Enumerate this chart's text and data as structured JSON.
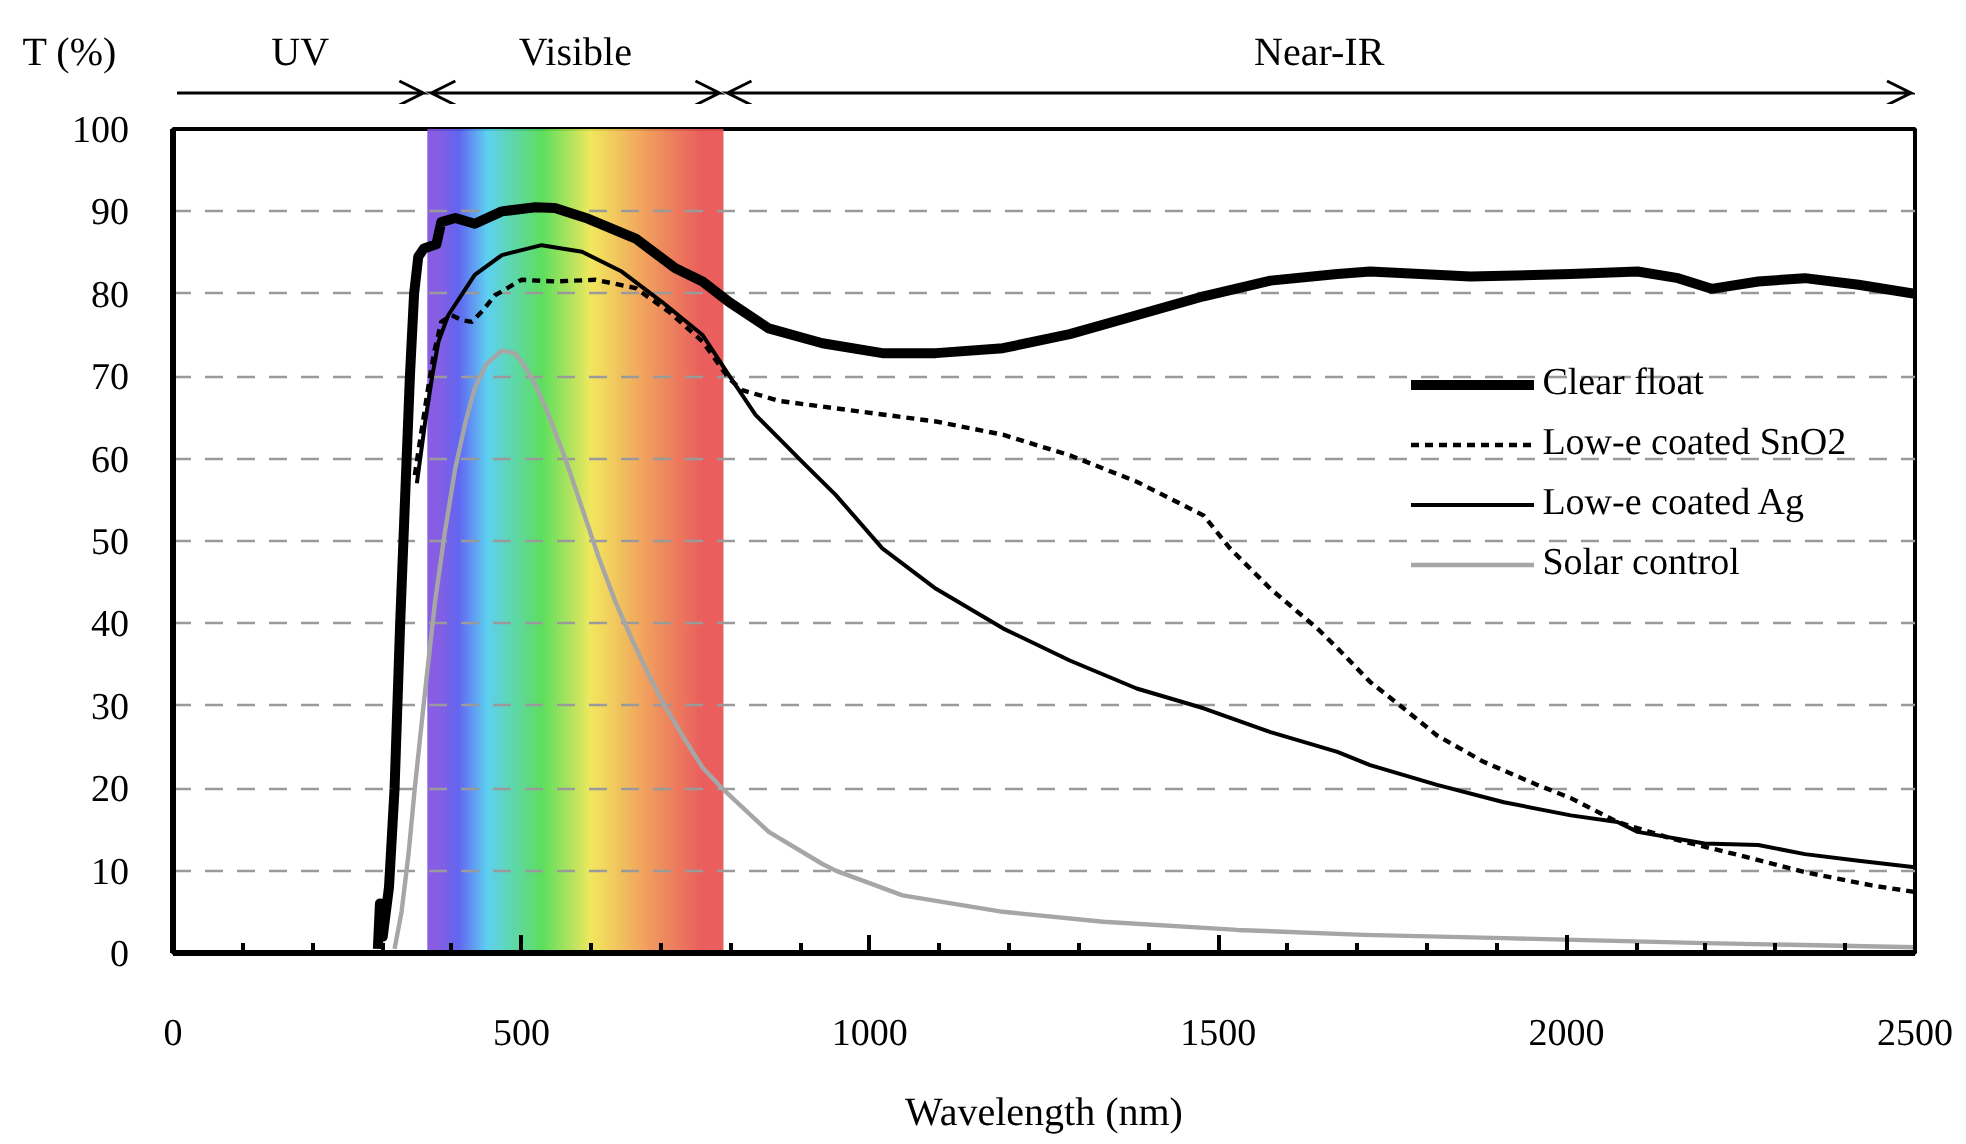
{
  "chart_data": {
    "type": "line",
    "xlabel": "Wavelength (nm)",
    "ylabel": "T (%)",
    "xlim": [
      0,
      2500
    ],
    "ylim": [
      0,
      100
    ],
    "xticks": [
      0,
      {
        "value": 100,
        "label": null
      },
      {
        "value": 200,
        "label": null
      },
      {
        "value": 300,
        "label": null
      },
      {
        "value": 400,
        "label": null
      },
      500,
      {
        "value": 600,
        "label": null
      },
      {
        "value": 700,
        "label": null
      },
      {
        "value": 800,
        "label": null
      },
      {
        "value": 900,
        "label": null
      },
      1000,
      {
        "value": 1100,
        "label": null
      },
      {
        "value": 1200,
        "label": null
      },
      {
        "value": 1300,
        "label": null
      },
      {
        "value": 1400,
        "label": null
      },
      1500,
      {
        "value": 1600,
        "label": null
      },
      {
        "value": 1700,
        "label": null
      },
      {
        "value": 1800,
        "label": null
      },
      {
        "value": 1900,
        "label": null
      },
      2000,
      {
        "value": 2100,
        "label": null
      },
      {
        "value": 2200,
        "label": null
      },
      {
        "value": 2300,
        "label": null
      },
      {
        "value": 2400,
        "label": null
      },
      2500
    ],
    "yticks": [
      0,
      10,
      20,
      30,
      40,
      50,
      60,
      70,
      80,
      90,
      100
    ],
    "grid": "y",
    "legend": "right",
    "line_style": "solid",
    "bands": [
      {
        "axis": "x",
        "from": 365,
        "to": 790,
        "label": "Visible"
      }
    ],
    "annotations": [
      "UV",
      "Near-IR"
    ],
    "series": [
      {
        "name": "Clear float",
        "color": "#000000",
        "x": [
          294,
          297,
          301,
          310,
          318,
          326,
          333,
          340,
          346,
          352,
          360,
          378,
          385,
          405,
          433,
          472,
          520,
          548,
          596,
          664,
          721,
          760,
          798,
          855,
          932,
          1018,
          1095,
          1191,
          1287,
          1383,
          1479,
          1575,
          1671,
          1718,
          1862,
          2006,
          2102,
          2160,
          2208,
          2275,
          2342,
          2419,
          2500
        ],
        "values": [
          0.5,
          6,
          2,
          8,
          20,
          40,
          55,
          70,
          80,
          84.5,
          85.5,
          86,
          88.7,
          89.2,
          88.5,
          90,
          90.5,
          90.4,
          89.1,
          86.7,
          83.1,
          81.5,
          79,
          75.8,
          74,
          72.8,
          72.8,
          73.4,
          75.1,
          77.4,
          79.7,
          81.6,
          82.4,
          82.7,
          82.1,
          82.4,
          82.7,
          81.9,
          80.6,
          81.5,
          81.9,
          81.1,
          80
        ]
      },
      {
        "name": "Low-e coated SnO2",
        "color": "#000000",
        "line_style": "dashed",
        "x": [
          347,
          356,
          366,
          375,
          385,
          400,
          415,
          429,
          445,
          462,
          500,
          548,
          606,
          664,
          712,
          760,
          798,
          817,
          870,
          951,
          1095,
          1191,
          1287,
          1383,
          1479,
          1517,
          1575,
          1642,
          1671,
          1718,
          1766,
          1814,
          1881,
          1958,
          2006,
          2073,
          2150,
          2246,
          2342,
          2438,
          2500
        ],
        "values": [
          58,
          63,
          68.5,
          73,
          76.6,
          77.4,
          76.8,
          76.6,
          78,
          79.8,
          81.7,
          81.5,
          81.7,
          80.7,
          77.8,
          74.2,
          69.7,
          68.3,
          67,
          66.1,
          64.5,
          62.9,
          60.4,
          57.2,
          53.1,
          49.1,
          44.2,
          39.4,
          37,
          32.9,
          29.7,
          26.4,
          23.2,
          20.4,
          18.8,
          15.9,
          13.9,
          11.9,
          9.8,
          8.2,
          7.4
        ]
      },
      {
        "name": "Low-e coated Ag",
        "color": "#000000",
        "x": [
          350,
          362,
          372,
          381,
          395,
          433,
          472,
          529,
          587,
          644,
          702,
          760,
          798,
          836,
          875,
          903,
          951,
          1018,
          1095,
          1191,
          1287,
          1383,
          1479,
          1575,
          1671,
          1718,
          1814,
          1910,
          2006,
          2073,
          2102,
          2198,
          2275,
          2342,
          2419,
          2500
        ],
        "values": [
          57,
          64.5,
          70,
          74.2,
          77.4,
          82.3,
          84.7,
          85.9,
          85.1,
          82.7,
          79,
          75,
          70.1,
          65.3,
          62,
          59.6,
          55.6,
          49.1,
          44.2,
          39.4,
          35.5,
          32.1,
          29.7,
          26.8,
          24.4,
          22.8,
          20.4,
          18.3,
          16.7,
          15.9,
          14.7,
          13.3,
          13.1,
          12,
          11.2,
          10.4
        ]
      },
      {
        "name": "Solar control",
        "color": "#a6a6a6",
        "x": [
          318,
          328,
          338,
          347,
          357,
          366,
          376,
          390,
          405,
          420,
          433,
          450,
          472,
          490,
          501,
          520,
          539,
          563,
          587,
          611,
          635,
          659,
          683,
          707,
          731,
          760,
          788,
          798,
          855,
          932,
          951,
          1047,
          1191,
          1335,
          1527,
          1709,
          1910,
          2198,
          2500
        ],
        "values": [
          0.5,
          5,
          12,
          20,
          28,
          35,
          42.6,
          51,
          58.8,
          64.5,
          68.5,
          71.5,
          73.1,
          72.8,
          71.7,
          69,
          65.3,
          60,
          54,
          48,
          42.6,
          38,
          33.7,
          29.8,
          26.4,
          22.5,
          20,
          19.2,
          14.7,
          10.8,
          10,
          7,
          5,
          3.8,
          2.8,
          2.2,
          1.8,
          1.2,
          0.7
        ]
      }
    ]
  }
}
